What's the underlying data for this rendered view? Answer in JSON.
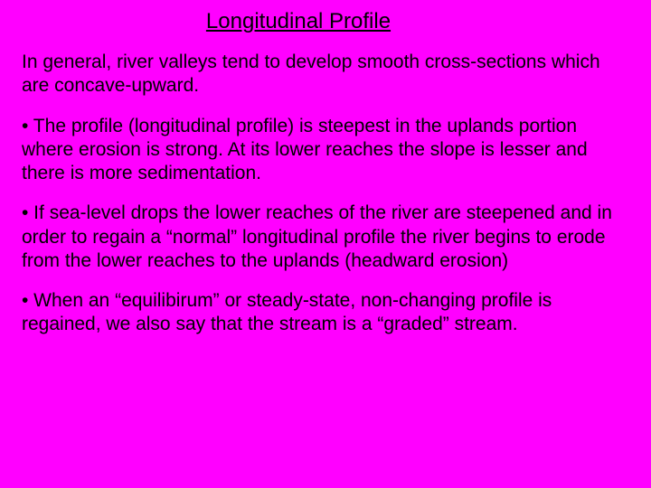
{
  "slide": {
    "background_color": "#ff00ff",
    "text_color": "#000000",
    "font_family": "Comic Sans MS",
    "title_fontsize": 24,
    "body_fontsize": 21,
    "title": "Longitudinal Profile",
    "intro": "In general, river valleys tend to develop smooth cross-sections which are concave-upward.",
    "bullets": [
      "• The profile (longitudinal profile) is steepest in the uplands portion where erosion is strong.  At its lower reaches the slope is lesser and there is more sedimentation.",
      "• If sea-level drops the lower reaches of the river are steepened and in order to regain a “normal” longitudinal profile the river begins to erode from the lower reaches to the uplands (headward erosion)",
      "• When an “equilibirum” or steady-state, non-changing profile is regained, we also say that the stream is a “graded” stream."
    ]
  }
}
